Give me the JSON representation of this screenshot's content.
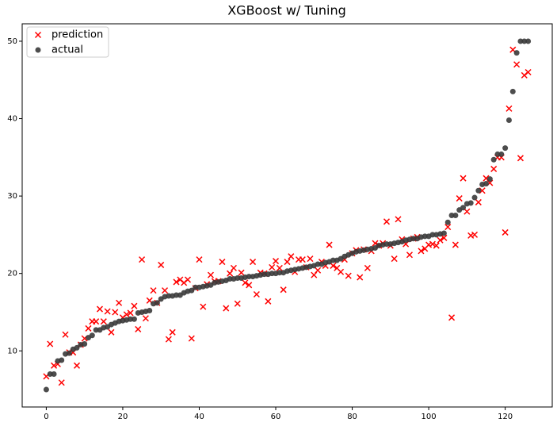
{
  "chart_data": {
    "type": "scatter",
    "title": "XGBoost w/ Tuning",
    "x": [
      0,
      1,
      2,
      3,
      4,
      5,
      6,
      7,
      8,
      9,
      10,
      11,
      12,
      13,
      14,
      15,
      16,
      17,
      18,
      19,
      20,
      21,
      22,
      23,
      24,
      25,
      26,
      27,
      28,
      29,
      30,
      31,
      32,
      33,
      34,
      35,
      36,
      37,
      38,
      39,
      40,
      41,
      42,
      43,
      44,
      45,
      46,
      47,
      48,
      49,
      50,
      51,
      52,
      53,
      54,
      55,
      56,
      57,
      58,
      59,
      60,
      61,
      62,
      63,
      64,
      65,
      66,
      67,
      68,
      69,
      70,
      71,
      72,
      73,
      74,
      75,
      76,
      77,
      78,
      79,
      80,
      81,
      82,
      83,
      84,
      85,
      86,
      87,
      88,
      89,
      90,
      91,
      92,
      93,
      94,
      95,
      96,
      97,
      98,
      99,
      100,
      101,
      102,
      103,
      104,
      105,
      106,
      107,
      108,
      109,
      110,
      111,
      112,
      113,
      114,
      115,
      116,
      117,
      118,
      119,
      120,
      121,
      122,
      123,
      124,
      125,
      126
    ],
    "series": [
      {
        "name": "prediction",
        "color": "#ff0000",
        "marker": "x",
        "values": [
          6.7,
          10.9,
          8.1,
          8.3,
          5.9,
          12.1,
          9.8,
          9.8,
          8.1,
          10.8,
          11.6,
          12.9,
          13.8,
          13.8,
          15.4,
          13.8,
          15.1,
          12.4,
          15.0,
          16.2,
          14.3,
          14.7,
          14.9,
          15.8,
          12.8,
          21.8,
          14.2,
          16.5,
          17.8,
          16.2,
          21.1,
          17.8,
          11.5,
          12.4,
          18.9,
          19.2,
          18.8,
          19.2,
          11.6,
          18.1,
          21.8,
          15.7,
          18.6,
          19.8,
          19.0,
          19.0,
          21.5,
          15.5,
          20.0,
          20.7,
          16.1,
          20.1,
          18.8,
          18.5,
          21.5,
          17.3,
          20.1,
          20.0,
          16.4,
          20.8,
          21.6,
          20.7,
          17.9,
          21.5,
          22.2,
          20.2,
          21.8,
          21.8,
          20.8,
          21.9,
          19.8,
          20.4,
          21.5,
          21.0,
          23.7,
          21.0,
          20.7,
          20.2,
          21.8,
          19.7,
          22.6,
          23.0,
          19.5,
          23.1,
          20.7,
          22.9,
          23.9,
          23.6,
          23.9,
          26.7,
          23.6,
          21.9,
          27.0,
          24.4,
          23.8,
          22.4,
          24.5,
          24.7,
          22.9,
          23.2,
          23.7,
          23.8,
          23.6,
          24.3,
          24.6,
          26.0,
          14.3,
          23.7,
          29.7,
          32.3,
          28.0,
          24.9,
          25.0,
          29.2,
          30.7,
          32.3,
          31.7,
          33.5,
          35.0,
          35.0,
          25.3,
          41.3,
          48.9,
          47.0,
          34.9,
          45.6,
          46.0
        ]
      },
      {
        "name": "actual",
        "color": "#3a3a3a",
        "marker": "o",
        "values": [
          5.0,
          7.0,
          7.0,
          8.7,
          8.8,
          9.6,
          9.7,
          10.2,
          10.4,
          10.8,
          10.9,
          11.7,
          12.0,
          12.7,
          12.7,
          13.0,
          13.1,
          13.4,
          13.6,
          13.8,
          13.9,
          14.0,
          14.1,
          14.1,
          14.9,
          15.0,
          15.1,
          15.2,
          16.1,
          16.2,
          16.7,
          17.0,
          17.1,
          17.1,
          17.2,
          17.2,
          17.5,
          17.7,
          17.8,
          18.2,
          18.2,
          18.3,
          18.4,
          18.5,
          18.8,
          18.9,
          19.0,
          19.1,
          19.3,
          19.3,
          19.4,
          19.4,
          19.5,
          19.6,
          19.6,
          19.7,
          19.8,
          19.9,
          19.9,
          20.0,
          20.0,
          20.1,
          20.1,
          20.3,
          20.4,
          20.5,
          20.6,
          20.7,
          20.8,
          20.9,
          21.0,
          21.2,
          21.2,
          21.4,
          21.5,
          21.7,
          21.7,
          21.9,
          22.2,
          22.4,
          22.6,
          22.8,
          22.9,
          23.0,
          23.1,
          23.2,
          23.3,
          23.6,
          23.7,
          23.8,
          23.8,
          23.9,
          24.0,
          24.1,
          24.3,
          24.4,
          24.5,
          24.5,
          24.7,
          24.8,
          24.8,
          25.0,
          25.0,
          25.1,
          25.2,
          26.6,
          27.5,
          27.5,
          28.2,
          28.5,
          29.0,
          29.1,
          29.8,
          30.7,
          31.5,
          31.6,
          32.2,
          34.7,
          35.4,
          35.4,
          36.2,
          39.8,
          43.5,
          48.5,
          50,
          50,
          50
        ]
      }
    ],
    "xlim": [
      -6.3,
      132.3
    ],
    "xticks": [
      0,
      20,
      40,
      60,
      80,
      100,
      120
    ],
    "ylim": [
      2.75,
      52.25
    ],
    "yticks": [
      10,
      20,
      30,
      40,
      50
    ],
    "grid": false,
    "legend": "upper left"
  }
}
